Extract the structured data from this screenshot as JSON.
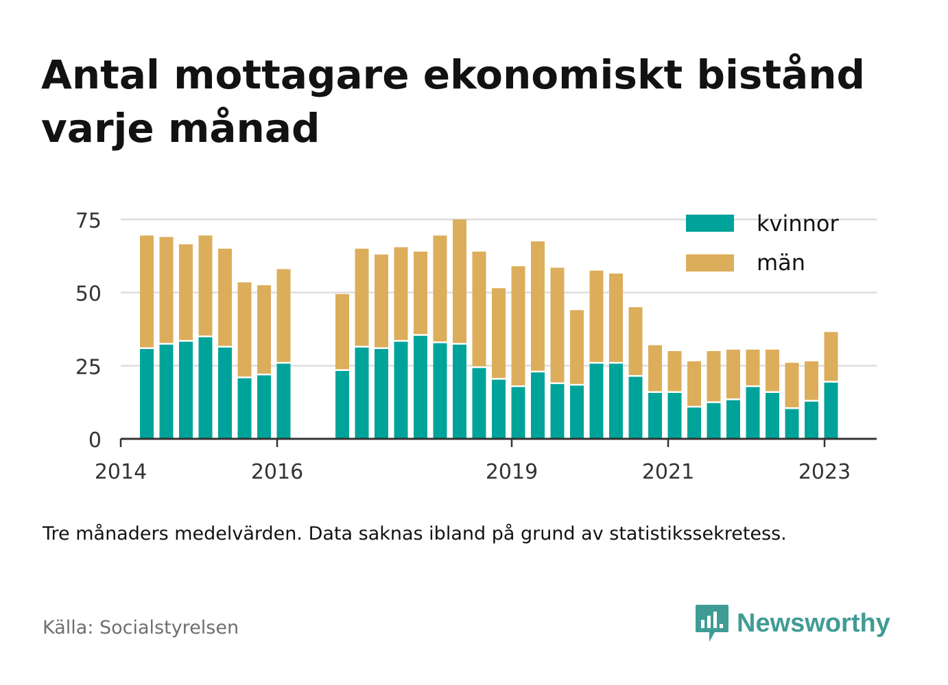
{
  "title": "Antal mottagare ekonomiskt bistånd varje månad",
  "note": "Tre månaders medelvärden. Data saknas ibland på grund av statistikssekretess.",
  "source": "Källa: Socialstyrelsen",
  "brand": {
    "name": "Newsworthy",
    "icon": "newsworthy-logo-icon"
  },
  "colors": {
    "kvinnor": "#00a39a",
    "man": "#dcae5b",
    "grid": "#dddddd",
    "axis": "#333333"
  },
  "chart_data": {
    "type": "bar",
    "stacked": true,
    "ylim": [
      0,
      75
    ],
    "yticks": [
      0,
      25,
      50,
      75
    ],
    "xticks": [
      "2014",
      "2016",
      "2019",
      "2021",
      "2023"
    ],
    "x_range": [
      "2014-01",
      "2023-09"
    ],
    "grid": true,
    "legend_position": "top-right",
    "x": [
      "2014-04",
      "2014-07",
      "2014-10",
      "2015-01",
      "2015-04",
      "2015-07",
      "2015-10",
      "2016-01",
      "2016-10",
      "2017-01",
      "2017-04",
      "2017-07",
      "2017-10",
      "2018-01",
      "2018-04",
      "2018-07",
      "2018-10",
      "2019-01",
      "2019-04",
      "2019-07",
      "2019-10",
      "2020-01",
      "2020-04",
      "2020-07",
      "2020-10",
      "2021-01",
      "2021-04",
      "2021-07",
      "2021-10",
      "2022-01",
      "2022-04",
      "2022-07",
      "2022-10",
      "2023-01"
    ],
    "series": [
      {
        "name": "kvinnor",
        "values": [
          31,
          32.5,
          33.5,
          35,
          31.5,
          21,
          22,
          26,
          23.5,
          31.5,
          31,
          33.5,
          35.5,
          33,
          32.5,
          24.5,
          20.5,
          18,
          23,
          19,
          18.5,
          26,
          26,
          21.5,
          16,
          16,
          11,
          12.5,
          13.5,
          18,
          16,
          10.5,
          13,
          19.5
        ]
      },
      {
        "name": "män",
        "values": [
          38.5,
          36.5,
          33,
          34.5,
          33.5,
          32.5,
          30.5,
          32,
          26,
          33.5,
          32,
          32,
          28.5,
          36.5,
          42.5,
          39.5,
          31,
          41,
          44.5,
          39.5,
          25.5,
          31.5,
          30.5,
          23.5,
          16,
          14,
          15.5,
          17.5,
          17,
          12.5,
          14.5,
          15.5,
          13.5,
          17
        ]
      }
    ]
  }
}
